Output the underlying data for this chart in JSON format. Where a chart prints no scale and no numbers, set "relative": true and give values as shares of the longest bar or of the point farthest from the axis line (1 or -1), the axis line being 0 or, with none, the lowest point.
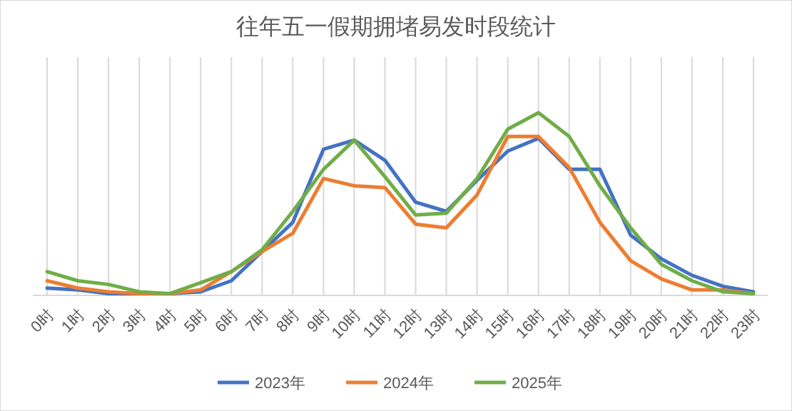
{
  "chart_data": {
    "type": "line",
    "title": "往年五一假期拥堵易发时段统计",
    "relative": true,
    "grid": "x",
    "legend": "bottom",
    "categories": [
      "0时",
      "1时",
      "2时",
      "3时",
      "4时",
      "5时",
      "6时",
      "7时",
      "8时",
      "9时",
      "10时",
      "11时",
      "12时",
      "13时",
      "14时",
      "15时",
      "16时",
      "17时",
      "18时",
      "19时",
      "20时",
      "21时",
      "22时",
      "23时"
    ],
    "series": [
      {
        "name": "2023年",
        "color": "#4472c4",
        "values": [
          0.04,
          0.03,
          0.01,
          0.01,
          0.01,
          0.02,
          0.08,
          0.24,
          0.4,
          0.8,
          0.85,
          0.74,
          0.51,
          0.46,
          0.63,
          0.79,
          0.86,
          0.69,
          0.69,
          0.33,
          0.2,
          0.11,
          0.05,
          0.02
        ]
      },
      {
        "name": "2024年",
        "color": "#ed7d31",
        "values": [
          0.08,
          0.04,
          0.02,
          0.01,
          0.01,
          0.03,
          0.13,
          0.24,
          0.34,
          0.64,
          0.6,
          0.59,
          0.39,
          0.37,
          0.55,
          0.87,
          0.87,
          0.7,
          0.4,
          0.19,
          0.09,
          0.03,
          0.03,
          0.01
        ]
      },
      {
        "name": "2025年",
        "color": "#70ad47",
        "values": [
          0.13,
          0.08,
          0.06,
          0.02,
          0.01,
          0.07,
          0.13,
          0.25,
          0.46,
          0.69,
          0.85,
          0.65,
          0.44,
          0.45,
          0.64,
          0.91,
          1,
          0.87,
          0.6,
          0.37,
          0.17,
          0.08,
          0.02,
          0.01
        ]
      }
    ]
  }
}
